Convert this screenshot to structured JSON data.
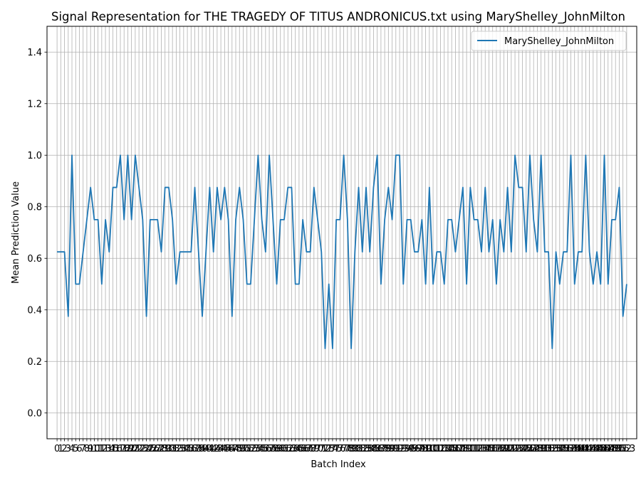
{
  "chart_data": {
    "type": "line",
    "title": "Signal Representation for THE TRAGEDY OF TITUS ANDRONICUS.txt using MaryShelley_JohnMilton",
    "xlabel": "Batch Index",
    "ylabel": "Mean Prediction Value",
    "xlim": [
      -2.7,
      155.7
    ],
    "ylim": [
      -0.1,
      1.5
    ],
    "yticks": [
      "0.0",
      "0.2",
      "0.4",
      "0.6",
      "0.8",
      "1.0",
      "1.2",
      "1.4"
    ],
    "ytick_values": [
      0.0,
      0.2,
      0.4,
      0.6,
      0.8,
      1.0,
      1.2,
      1.4
    ],
    "grid": true,
    "legend_position": "top-right",
    "series": [
      {
        "name": "MaryShelley_JohnMilton",
        "color": "#1f77b4",
        "values": [
          0.625,
          0.625,
          0.625,
          0.375,
          1.0,
          0.5,
          0.5,
          0.625,
          0.75,
          0.875,
          0.75,
          0.75,
          0.5,
          0.75,
          0.625,
          0.875,
          0.875,
          1.0,
          0.75,
          1.0,
          0.75,
          1.0,
          0.875,
          0.75,
          0.375,
          0.75,
          0.75,
          0.75,
          0.625,
          0.875,
          0.875,
          0.75,
          0.5,
          0.625,
          0.625,
          0.625,
          0.625,
          0.875,
          0.625,
          0.375,
          0.625,
          0.875,
          0.625,
          0.875,
          0.75,
          0.875,
          0.75,
          0.375,
          0.75,
          0.875,
          0.75,
          0.5,
          0.5,
          0.75,
          1.0,
          0.75,
          0.625,
          1.0,
          0.75,
          0.5,
          0.75,
          0.75,
          0.875,
          0.875,
          0.5,
          0.5,
          0.75,
          0.625,
          0.625,
          0.875,
          0.75,
          0.625,
          0.25,
          0.5,
          0.25,
          0.75,
          0.75,
          1.0,
          0.75,
          0.25,
          0.625,
          0.875,
          0.625,
          0.875,
          0.625,
          0.875,
          1.0,
          0.5,
          0.75,
          0.875,
          0.75,
          1.0,
          1.0,
          0.5,
          0.75,
          0.75,
          0.625,
          0.625,
          0.75,
          0.5,
          0.875,
          0.5,
          0.625,
          0.625,
          0.5,
          0.75,
          0.75,
          0.625,
          0.75,
          0.875,
          0.5,
          0.875,
          0.75,
          0.75,
          0.625,
          0.875,
          0.625,
          0.75,
          0.5,
          0.75,
          0.625,
          0.875,
          0.625,
          1.0,
          0.875,
          0.875,
          0.625,
          1.0,
          0.75,
          0.625,
          1.0,
          0.625,
          0.625,
          0.25,
          0.625,
          0.5,
          0.625,
          0.625,
          1.0,
          0.5,
          0.625,
          0.625,
          1.0,
          0.625,
          0.5,
          0.625,
          0.5,
          1.0,
          0.5,
          0.75,
          0.75,
          0.875,
          0.375,
          0.5
        ]
      }
    ]
  }
}
